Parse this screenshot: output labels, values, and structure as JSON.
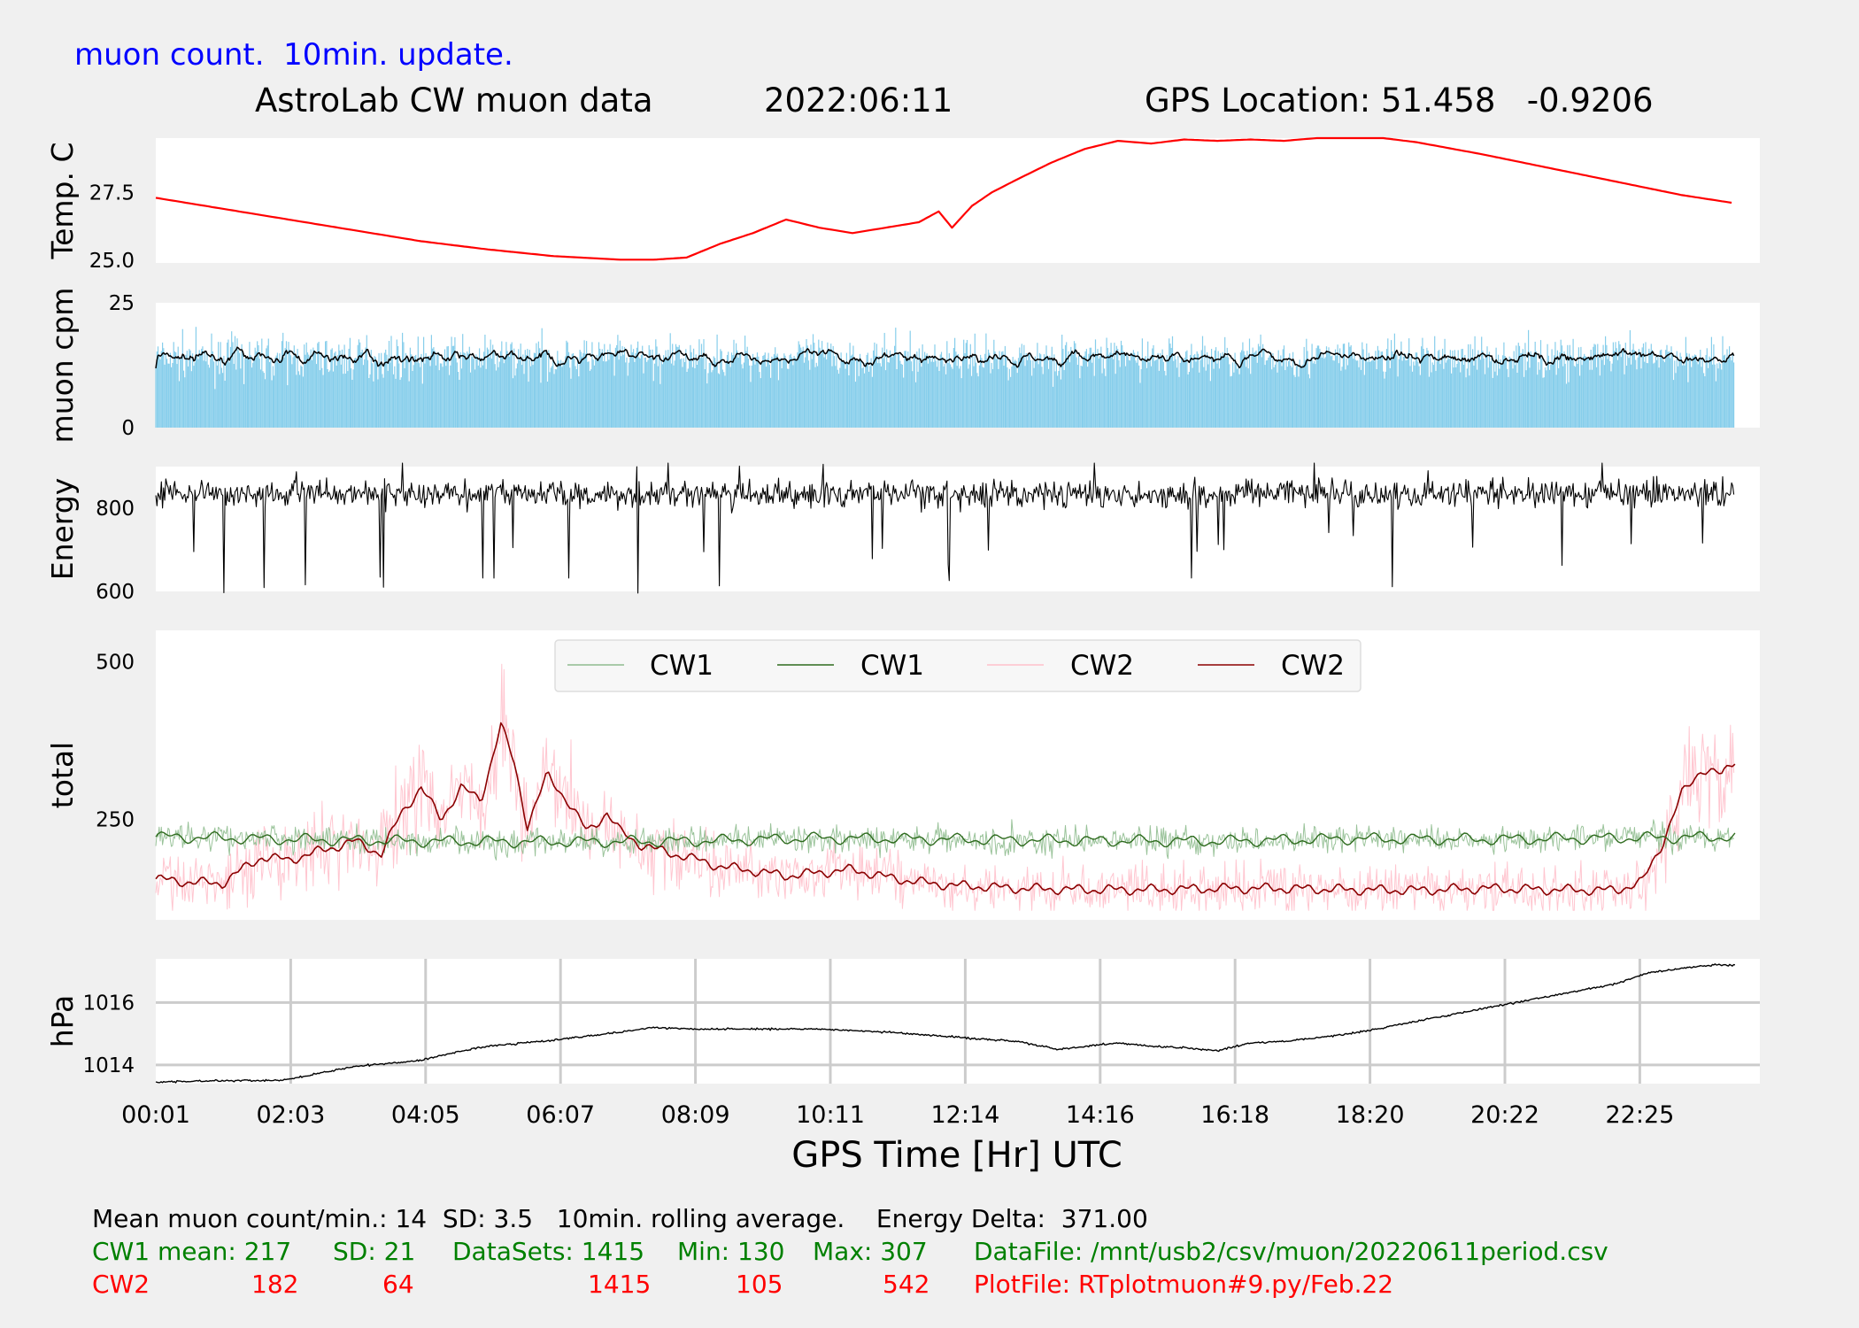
{
  "header": {
    "subtitle": "muon count.  10min. update.",
    "title": "AstroLab CW muon data",
    "date": "2022:06:11",
    "gps_location": "GPS Location: 51.458   -0.9206"
  },
  "xaxis": {
    "label": "GPS Time  [Hr] UTC",
    "ticks": [
      "00:01",
      "02:03",
      "04:05",
      "06:07",
      "08:09",
      "10:11",
      "12:14",
      "14:16",
      "16:18",
      "18:20",
      "20:22",
      "22:25"
    ]
  },
  "colors": {
    "temperature": "#ff0000",
    "muon_bars": "#87ceeb",
    "muon_avg": "#000000",
    "energy": "#000000",
    "cw1_raw": "#8fbc8f",
    "cw1_avg": "#2e6b1e",
    "cw2_raw": "#ffc0cb",
    "cw2_avg": "#8b0000",
    "pressure": "#000000",
    "grid": "#cccccc"
  },
  "chart_data": [
    {
      "type": "line",
      "ylabel": "Temp. C",
      "yticks": [
        25.0,
        27.5
      ],
      "ytick_labels": [
        "25.0",
        "27.5"
      ],
      "ylim": [
        24.9,
        29.5
      ],
      "x_hours": [
        0.0,
        1.0,
        2.0,
        3.0,
        4.0,
        5.0,
        6.0,
        7.0,
        7.5,
        8.0,
        8.5,
        9.0,
        9.5,
        10.0,
        10.5,
        11.0,
        11.5,
        11.8,
        12.0,
        12.3,
        12.6,
        13.0,
        13.5,
        14.0,
        14.5,
        15.0,
        15.5,
        16.0,
        16.5,
        17.0,
        17.5,
        18.0,
        18.5,
        19.0,
        20.0,
        21.0,
        22.0,
        23.0,
        23.8
      ],
      "y": [
        27.3,
        26.9,
        26.5,
        26.1,
        25.7,
        25.4,
        25.15,
        25.02,
        25.02,
        25.1,
        25.6,
        26.0,
        26.5,
        26.2,
        26.0,
        26.2,
        26.4,
        26.8,
        26.2,
        27.0,
        27.5,
        28.0,
        28.6,
        29.1,
        29.4,
        29.3,
        29.45,
        29.4,
        29.45,
        29.4,
        29.5,
        29.5,
        29.5,
        29.35,
        28.9,
        28.4,
        27.9,
        27.4,
        27.1
      ]
    },
    {
      "type": "bar",
      "ylabel": "muon cpm",
      "yticks": [
        0,
        25
      ],
      "ytick_labels": [
        "0",
        "25"
      ],
      "ylim": [
        0,
        25
      ],
      "series": [
        {
          "name": "muon count per minute (1-min bars)",
          "values": "approx. 5-27, mean 14"
        },
        {
          "name": "10 min rolling average",
          "values": "approx. 12-16"
        }
      ],
      "mean": 14,
      "sd": 3.5
    },
    {
      "type": "line",
      "ylabel": "Energy",
      "yticks": [
        600,
        800
      ],
      "ytick_labels": [
        "600",
        "800"
      ],
      "ylim": [
        600,
        900
      ],
      "range": [
        595,
        935
      ]
    },
    {
      "type": "line",
      "ylabel": "total",
      "yticks": [
        250,
        500
      ],
      "ytick_labels": [
        "250",
        "500"
      ],
      "ylim": [
        90,
        550
      ],
      "legend": [
        "CW1",
        "CW1",
        "CW2",
        "CW2"
      ],
      "legend_position": "top-center",
      "cw2_avg": {
        "x_hours": [
          0.0,
          0.5,
          1.0,
          1.3,
          1.6,
          2.0,
          2.5,
          3.0,
          3.4,
          3.7,
          4.0,
          4.3,
          4.6,
          4.9,
          5.2,
          5.4,
          5.6,
          5.9,
          6.2,
          6.5,
          6.8,
          7.0,
          7.3,
          7.6,
          8.0,
          8.5,
          9.0,
          9.5,
          10.0,
          10.5,
          11.0,
          11.5,
          12.0,
          13.0,
          14.0,
          15.0,
          16.0,
          17.0,
          18.0,
          19.0,
          20.0,
          21.0,
          22.0,
          22.4,
          22.7,
          23.0,
          23.3,
          23.6,
          23.8
        ],
        "y": [
          155,
          150,
          148,
          170,
          190,
          185,
          200,
          215,
          195,
          260,
          300,
          250,
          300,
          280,
          400,
          340,
          240,
          320,
          280,
          230,
          260,
          230,
          210,
          200,
          190,
          175,
          168,
          160,
          165,
          170,
          158,
          150,
          145,
          140,
          138,
          138,
          140,
          140,
          138,
          137,
          140,
          138,
          137,
          150,
          210,
          290,
          330,
          320,
          345
        ]
      },
      "cw1_avg": {
        "x_hours": [
          0.0,
          2.0,
          4.0,
          6.0,
          8.0,
          10.0,
          12.0,
          14.0,
          16.0,
          18.0,
          20.0,
          22.0,
          23.8
        ],
        "y": [
          222,
          218,
          215,
          214,
          215,
          220,
          218,
          216,
          215,
          219,
          218,
          220,
          222
        ]
      },
      "cw1_stats": {
        "mean": 217,
        "sd": 21,
        "datasets": 1415,
        "min": 130,
        "max": 307
      },
      "cw2_stats": {
        "mean": 182,
        "sd": 64,
        "datasets": 1415,
        "min": 105,
        "max": 542
      }
    },
    {
      "type": "line",
      "ylabel": "hPa",
      "yticks": [
        1014,
        1016
      ],
      "ytick_labels": [
        "1014",
        "1016"
      ],
      "ylim": [
        1013.4,
        1017.4
      ],
      "grid": true,
      "x_hours": [
        0.0,
        1.0,
        1.9,
        2.5,
        3.0,
        3.5,
        4.0,
        4.5,
        5.0,
        6.0,
        7.0,
        7.5,
        8.0,
        9.0,
        10.0,
        11.0,
        12.0,
        13.0,
        13.6,
        14.0,
        14.5,
        15.0,
        15.5,
        16.0,
        16.5,
        17.0,
        18.0,
        19.0,
        20.0,
        21.0,
        22.0,
        22.5,
        23.0,
        23.5,
        23.8
      ],
      "y": [
        1013.45,
        1013.5,
        1013.5,
        1013.75,
        1013.95,
        1014.05,
        1014.15,
        1014.4,
        1014.6,
        1014.8,
        1015.05,
        1015.2,
        1015.15,
        1015.15,
        1015.15,
        1015.05,
        1014.9,
        1014.75,
        1014.5,
        1014.6,
        1014.7,
        1014.6,
        1014.55,
        1014.45,
        1014.7,
        1014.75,
        1015.0,
        1015.4,
        1015.8,
        1016.2,
        1016.6,
        1016.95,
        1017.1,
        1017.2,
        1017.2
      ]
    }
  ],
  "footer": {
    "line1": "Mean muon count/min.: 14  SD: 3.5   10min. rolling average.    Energy Delta:  371.00",
    "cw1_label": "CW1 mean: 217",
    "cw1_sd": "SD: 21",
    "cw1_datasets": "DataSets: 1415",
    "cw1_min": "Min: 130",
    "cw1_max": "Max: 307",
    "datafile": "DataFile: /mnt/usb2/csv/muon/20220611period.csv",
    "cw2_label": "CW2",
    "cw2_mean": "182",
    "cw2_sd": "64",
    "cw2_datasets": "1415",
    "cw2_min": "105",
    "cw2_max": "542",
    "plotfile": "PlotFile: RTplotmuon#9.py/Feb.22"
  }
}
